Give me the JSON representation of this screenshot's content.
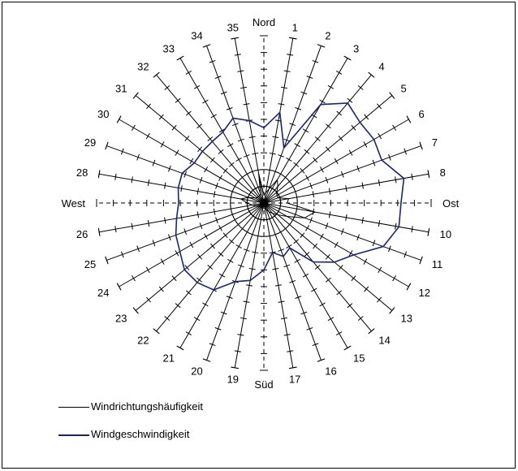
{
  "chart_data": {
    "type": "radar",
    "title": "",
    "directions": [
      "Nord",
      "1",
      "2",
      "3",
      "4",
      "5",
      "6",
      "7",
      "8",
      "Ost",
      "10",
      "11",
      "12",
      "13",
      "14",
      "15",
      "16",
      "17",
      "Süd",
      "19",
      "20",
      "21",
      "22",
      "23",
      "24",
      "25",
      "26",
      "West",
      "28",
      "29",
      "30",
      "31",
      "32",
      "33",
      "34",
      "35"
    ],
    "radial_max": 10,
    "gridline_interval": 1,
    "series": [
      {
        "name": "Windrichtungshäufigkeit",
        "color": "#000000",
        "values": [
          0.5,
          0.6,
          0.9,
          1.6,
          1.3,
          1.0,
          0.9,
          0.9,
          1.5,
          1.4,
          3.1,
          2.6,
          1.6,
          1.1,
          0.8,
          0.6,
          0.4,
          0.3,
          0.3,
          0.3,
          0.3,
          0.3,
          0.3,
          0.3,
          0.4,
          0.5,
          0.7,
          1.0,
          1.4,
          1.0,
          0.6,
          0.5,
          0.5,
          0.5,
          0.6,
          1.8
        ]
      },
      {
        "name": "Windgeschwindigkeit",
        "color": "#1a237e",
        "values": [
          4.5,
          5.5,
          3.5,
          6.8,
          7.8,
          7.5,
          7.6,
          7.5,
          8.5,
          8.2,
          8.2,
          7.6,
          6.2,
          5.5,
          4.6,
          3.1,
          3.4,
          3.0,
          4.0,
          4.7,
          5.0,
          6.0,
          6.2,
          6.2,
          5.8,
          5.6,
          5.3,
          5.1,
          5.2,
          5.2,
          4.8,
          4.8,
          4.8,
          4.9,
          5.4,
          5.0
        ]
      }
    ],
    "legend": [
      "Windrichtungshäufigkeit",
      "Windgeschwindigkeit"
    ],
    "legend_position": "bottom-left"
  }
}
